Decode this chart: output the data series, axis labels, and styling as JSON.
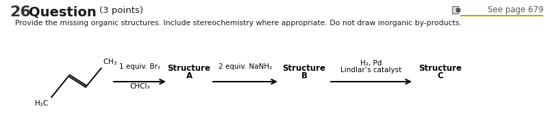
{
  "title_number": "26",
  "title_word": "Question",
  "title_points": "(3 points)",
  "subtitle": "Provide the missing organic structures. Include stereochemistry where appropriate. Do not draw inorganic by-products.",
  "see_page": "See page 679",
  "bg_color": "#ffffff",
  "text_color": "#1a1a1a",
  "gray_color": "#555555",
  "gold_color": "#c8a000",
  "arrow1_label_top": "1 equiv. Br₂",
  "arrow1_label_bot": "CHCl₃",
  "arrow2_label_top": "2 equiv. NaNH₂",
  "arrow3_label_top": "H₂, Pd",
  "arrow3_label_bot": "Lindlar’s catalyst",
  "struct_a_line1": "Structure",
  "struct_a_line2": "A",
  "struct_b_line1": "Structure",
  "struct_b_line2": "B",
  "struct_c_line1": "Structure",
  "struct_c_line2": "C"
}
